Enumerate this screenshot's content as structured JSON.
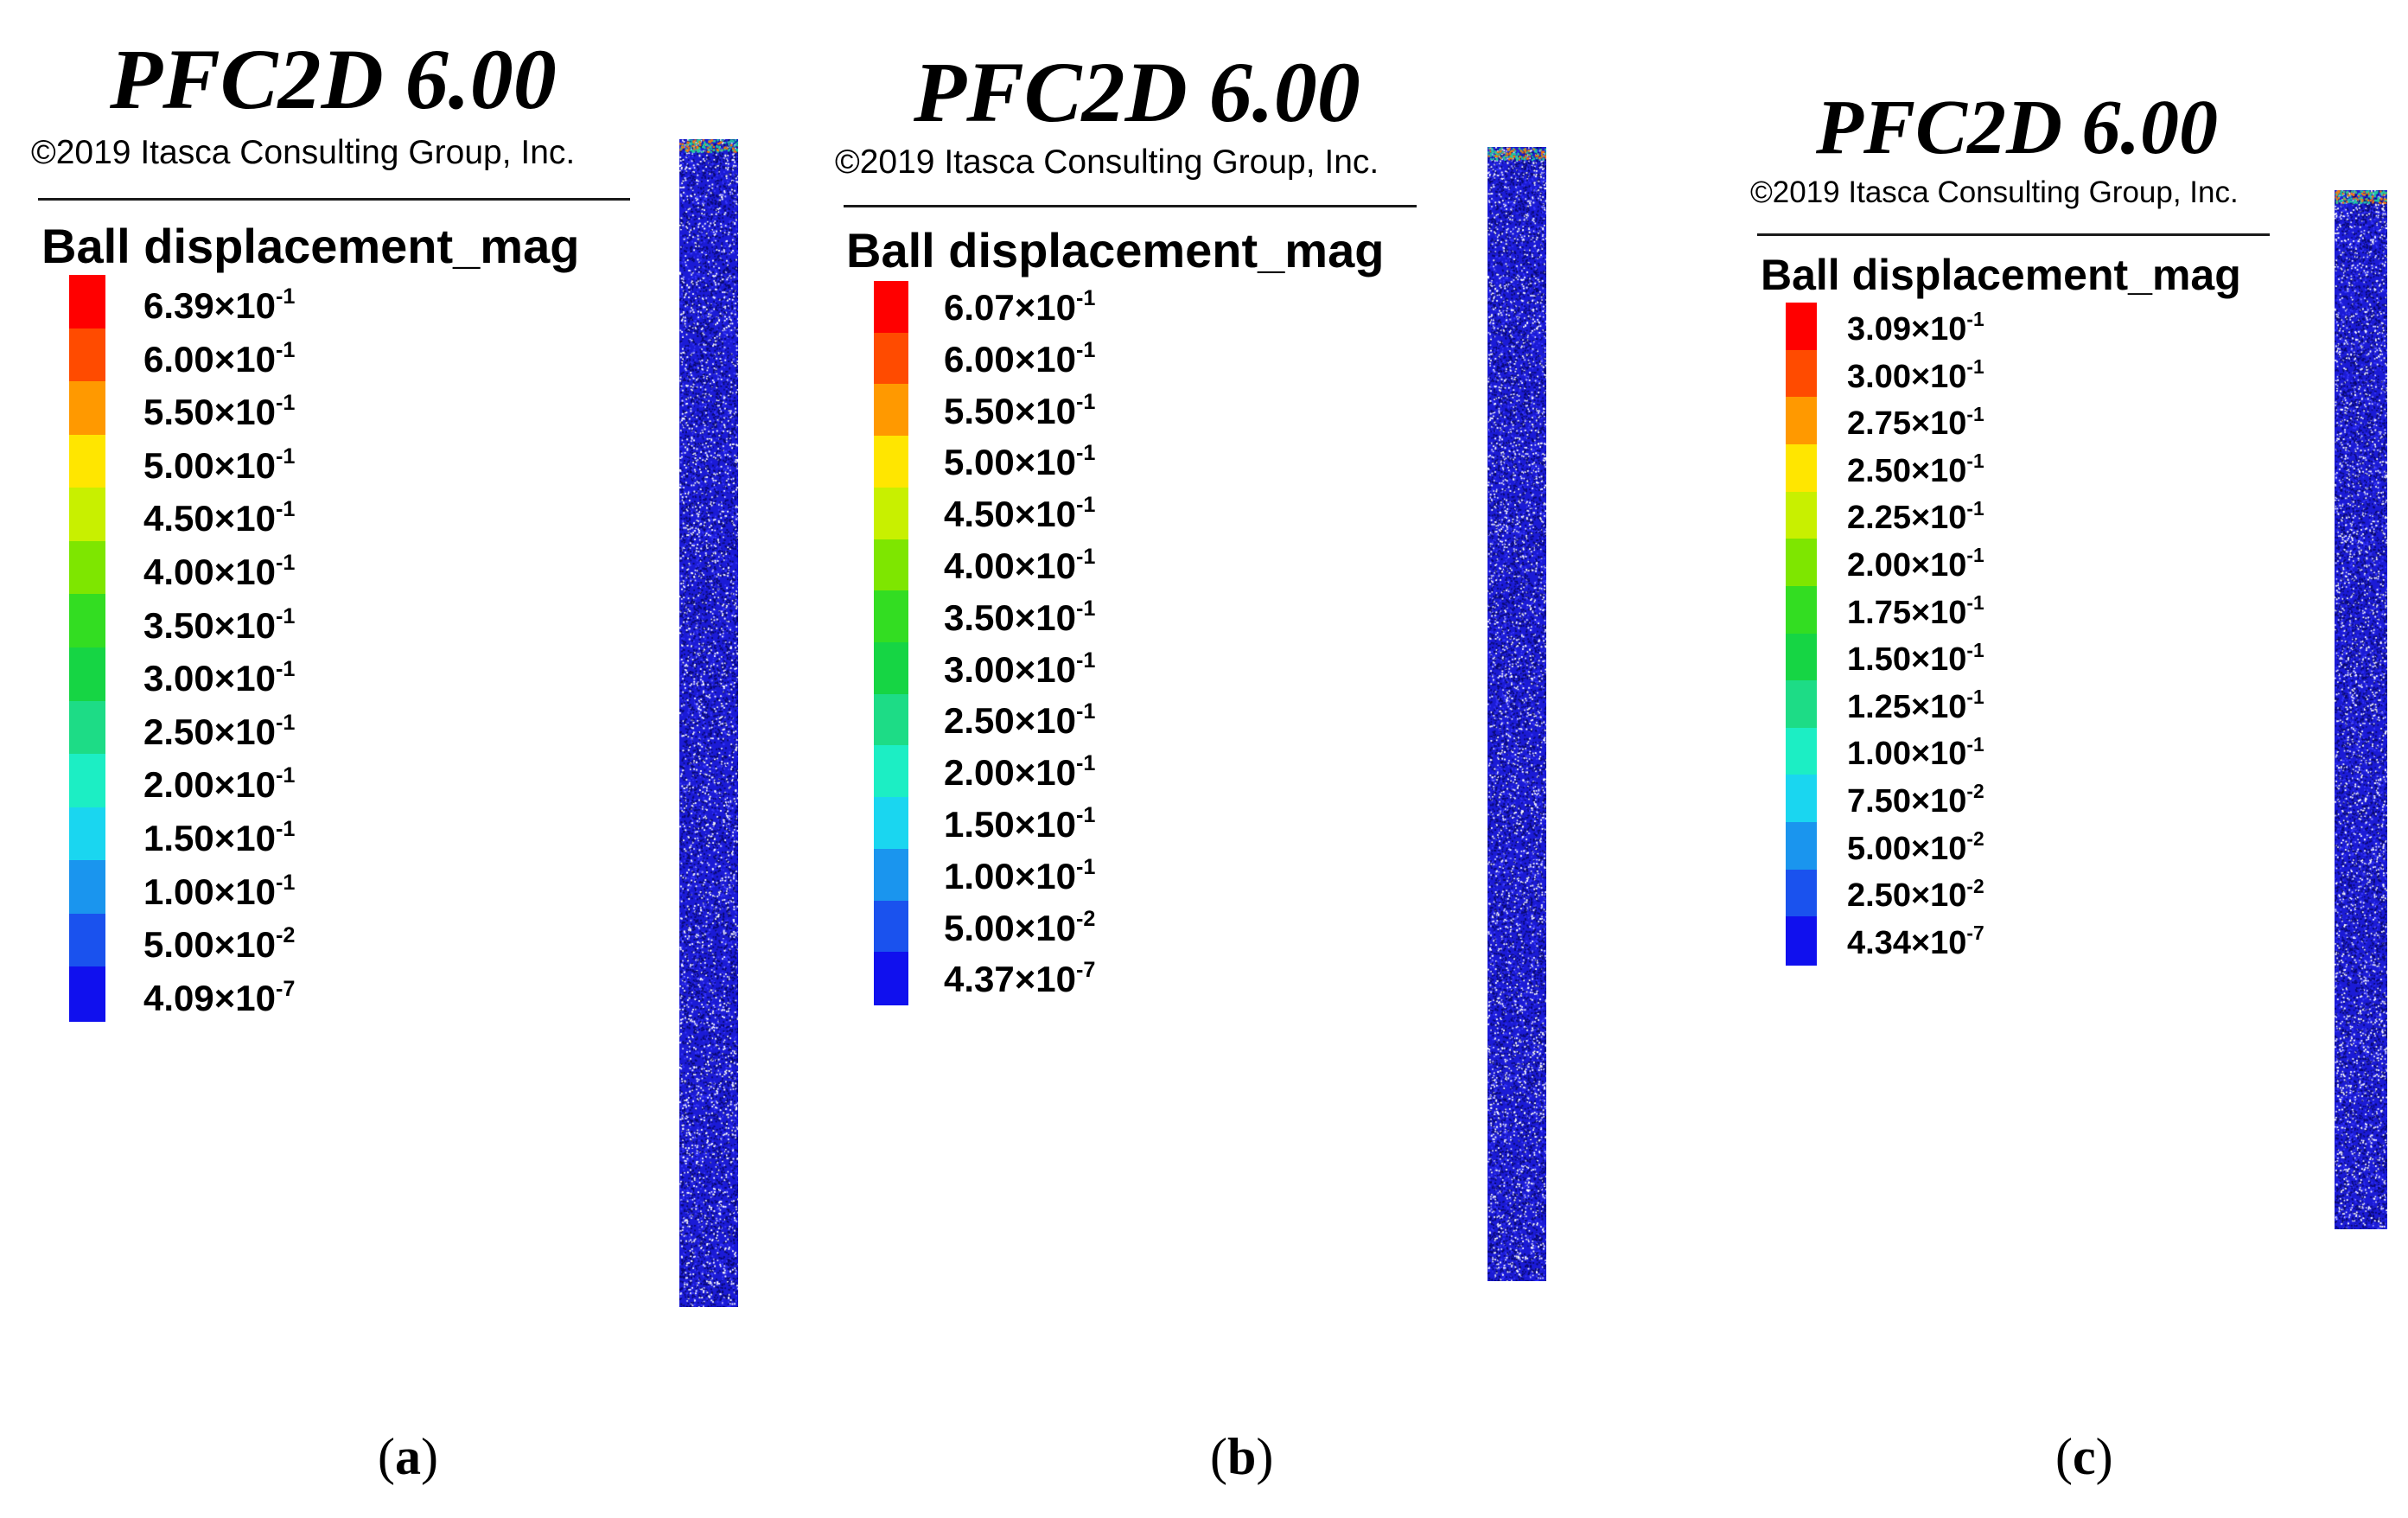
{
  "panels": [
    {
      "id": "a",
      "title": "PFC2D 6.00",
      "copyright": "©2019 Itasca Consulting Group, Inc.",
      "legend_title": "Ball displacement_mag",
      "caption": {
        "open": "(",
        "letter": "a",
        "close": ")"
      },
      "legend": [
        {
          "mantissa": "6.39",
          "times": "×10",
          "exponent": "-1"
        },
        {
          "mantissa": "6.00",
          "times": "×10",
          "exponent": "-1"
        },
        {
          "mantissa": "5.50",
          "times": "×10",
          "exponent": "-1"
        },
        {
          "mantissa": "5.00",
          "times": "×10",
          "exponent": "-1"
        },
        {
          "mantissa": "4.50",
          "times": "×10",
          "exponent": "-1"
        },
        {
          "mantissa": "4.00",
          "times": "×10",
          "exponent": "-1"
        },
        {
          "mantissa": "3.50",
          "times": "×10",
          "exponent": "-1"
        },
        {
          "mantissa": "3.00",
          "times": "×10",
          "exponent": "-1"
        },
        {
          "mantissa": "2.50",
          "times": "×10",
          "exponent": "-1"
        },
        {
          "mantissa": "2.00",
          "times": "×10",
          "exponent": "-1"
        },
        {
          "mantissa": "1.50",
          "times": "×10",
          "exponent": "-1"
        },
        {
          "mantissa": "1.00",
          "times": "×10",
          "exponent": "-1"
        },
        {
          "mantissa": "5.00",
          "times": "×10",
          "exponent": "-2"
        },
        {
          "mantissa": "4.09",
          "times": "×10",
          "exponent": "-7"
        }
      ]
    },
    {
      "id": "b",
      "title": "PFC2D 6.00",
      "copyright": "©2019 Itasca Consulting Group, Inc.",
      "legend_title": "Ball displacement_mag",
      "caption": {
        "open": "(",
        "letter": "b",
        "close": ")"
      },
      "legend": [
        {
          "mantissa": "6.07",
          "times": "×10",
          "exponent": "-1"
        },
        {
          "mantissa": "6.00",
          "times": "×10",
          "exponent": "-1"
        },
        {
          "mantissa": "5.50",
          "times": "×10",
          "exponent": "-1"
        },
        {
          "mantissa": "5.00",
          "times": "×10",
          "exponent": "-1"
        },
        {
          "mantissa": "4.50",
          "times": "×10",
          "exponent": "-1"
        },
        {
          "mantissa": "4.00",
          "times": "×10",
          "exponent": "-1"
        },
        {
          "mantissa": "3.50",
          "times": "×10",
          "exponent": "-1"
        },
        {
          "mantissa": "3.00",
          "times": "×10",
          "exponent": "-1"
        },
        {
          "mantissa": "2.50",
          "times": "×10",
          "exponent": "-1"
        },
        {
          "mantissa": "2.00",
          "times": "×10",
          "exponent": "-1"
        },
        {
          "mantissa": "1.50",
          "times": "×10",
          "exponent": "-1"
        },
        {
          "mantissa": "1.00",
          "times": "×10",
          "exponent": "-1"
        },
        {
          "mantissa": "5.00",
          "times": "×10",
          "exponent": "-2"
        },
        {
          "mantissa": "4.37",
          "times": "×10",
          "exponent": "-7"
        }
      ]
    },
    {
      "id": "c",
      "title": "PFC2D 6.00",
      "copyright": "©2019 Itasca Consulting Group, Inc.",
      "legend_title": "Ball displacement_mag",
      "caption": {
        "open": "(",
        "letter": "c",
        "close": ")"
      },
      "legend": [
        {
          "mantissa": "3.09",
          "times": "×10",
          "exponent": "-1"
        },
        {
          "mantissa": "3.00",
          "times": "×10",
          "exponent": "-1"
        },
        {
          "mantissa": "2.75",
          "times": "×10",
          "exponent": "-1"
        },
        {
          "mantissa": "2.50",
          "times": "×10",
          "exponent": "-1"
        },
        {
          "mantissa": "2.25",
          "times": "×10",
          "exponent": "-1"
        },
        {
          "mantissa": "2.00",
          "times": "×10",
          "exponent": "-1"
        },
        {
          "mantissa": "1.75",
          "times": "×10",
          "exponent": "-1"
        },
        {
          "mantissa": "1.50",
          "times": "×10",
          "exponent": "-1"
        },
        {
          "mantissa": "1.25",
          "times": "×10",
          "exponent": "-1"
        },
        {
          "mantissa": "1.00",
          "times": "×10",
          "exponent": "-1"
        },
        {
          "mantissa": "7.50",
          "times": "×10",
          "exponent": "-2"
        },
        {
          "mantissa": "5.00",
          "times": "×10",
          "exponent": "-2"
        },
        {
          "mantissa": "2.50",
          "times": "×10",
          "exponent": "-2"
        },
        {
          "mantissa": "4.34",
          "times": "×10",
          "exponent": "-7"
        }
      ]
    }
  ],
  "colormap": [
    "#ff0000",
    "#ff4b00",
    "#ff9900",
    "#ffe600",
    "#c8f000",
    "#7ee600",
    "#33dd22",
    "#16d544",
    "#1ddc86",
    "#1ceec4",
    "#1ad6f0",
    "#1a95ee",
    "#1a52ee",
    "#1010ee"
  ],
  "particle_colors": {
    "background": "#1b1bd6",
    "speckle_dark": "#0a0a6e",
    "speckle_light": "#ffffff",
    "top_hot": "#ff7a00",
    "top_warm": "#1fd0a0"
  }
}
